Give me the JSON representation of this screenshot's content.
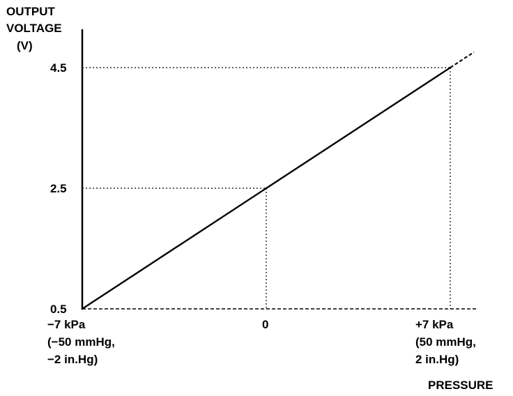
{
  "chart_data": {
    "type": "line",
    "title": "",
    "ylabel": [
      "OUTPUT",
      "VOLTAGE",
      "(V)"
    ],
    "xlabel": "PRESSURE",
    "x_unit": "kPa",
    "y_unit": "V",
    "xlim": [
      -7,
      7.9
    ],
    "ylim": [
      0.5,
      5.1
    ],
    "series": [
      {
        "x": [
          -7,
          0,
          7
        ],
        "y": [
          0.5,
          2.5,
          4.5
        ],
        "extends_to_x": 7.9
      }
    ],
    "reference_points": [
      {
        "x": 0,
        "y": 2.5
      },
      {
        "x": 7,
        "y": 4.5
      }
    ],
    "y_ticks": [
      {
        "value": 0.5,
        "label": "0.5"
      },
      {
        "value": 2.5,
        "label": "2.5"
      },
      {
        "value": 4.5,
        "label": "4.5"
      }
    ],
    "x_ticks": [
      {
        "value": -7,
        "lines": [
          "−7 kPa",
          "(−50 mmHg,",
          "−2 in.Hg)"
        ]
      },
      {
        "value": 0,
        "lines": [
          "0"
        ]
      },
      {
        "value": 7,
        "lines": [
          "+7 kPa",
          "(50 mmHg,",
          "2 in.Hg)"
        ]
      }
    ],
    "grid": false,
    "legend": "none",
    "line_color": "#000000"
  }
}
